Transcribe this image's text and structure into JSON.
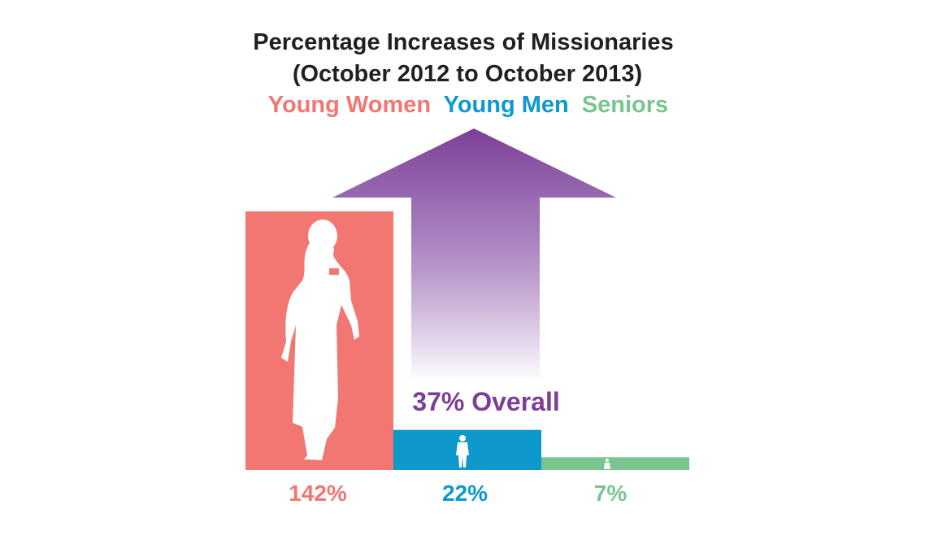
{
  "chart_data": {
    "type": "bar",
    "title": "Percentage Increases of Missionaries",
    "subtitle": "(October 2012 to October 2013)",
    "categories": [
      "Young Women",
      "Young Men",
      "Seniors"
    ],
    "values": [
      142,
      22,
      7
    ],
    "value_labels": [
      "142%",
      "22%",
      "7%"
    ],
    "colors": [
      "#f27672",
      "#0e98cc",
      "#79c48f"
    ],
    "overall": {
      "value": 37,
      "label": "37% Overall",
      "color": "#7c3f97"
    },
    "ylim": [
      0,
      142
    ],
    "grid": false,
    "legend": "top-center",
    "icons": [
      "woman-silhouette-icon",
      "man-silhouette-icon",
      "senior-silhouette-icon"
    ]
  }
}
